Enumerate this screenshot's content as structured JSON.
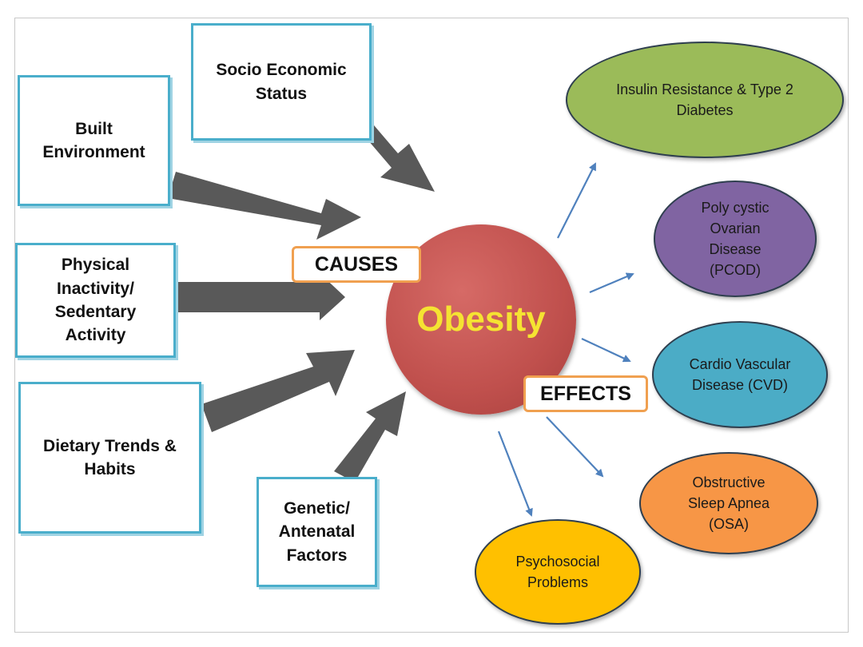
{
  "title": "",
  "center": {
    "label": "Obesity",
    "color": "#c0504d",
    "text_color": "#f5e332"
  },
  "causes_label": "CAUSES",
  "effects_label": "EFFECTS",
  "causes": [
    {
      "id": "socio",
      "label": "Socio Economic\nStatus"
    },
    {
      "id": "built",
      "label": "Built\nEnvironment"
    },
    {
      "id": "physical",
      "label": "Physical\nInactivity/\nSedentary\nActivity"
    },
    {
      "id": "dietary",
      "label": "Dietary Trends &\nHabits"
    },
    {
      "id": "genetic",
      "label": "Genetic/\nAntenatal\nFactors"
    }
  ],
  "effects": [
    {
      "id": "insulin",
      "label": "Insulin Resistance & Type 2\nDiabetes",
      "color": "#9bbb59"
    },
    {
      "id": "pcod",
      "label": "Poly cystic\nOvarian\nDisease\n(PCOD)",
      "color": "#8064a2"
    },
    {
      "id": "cvd",
      "label": "Cardio Vascular\nDisease (CVD)",
      "color": "#4bacc6"
    },
    {
      "id": "osa",
      "label": "Obstructive\nSleep Apnea\n(OSA)",
      "color": "#f79646"
    },
    {
      "id": "psycho",
      "label": "Psychosocial\nProblems",
      "color": "#ffc000"
    }
  ],
  "colors": {
    "cause_border": "#4aaecb",
    "tag_border": "#f0a050",
    "cause_arrow": "#595959",
    "effect_arrow": "#4f81bd"
  }
}
